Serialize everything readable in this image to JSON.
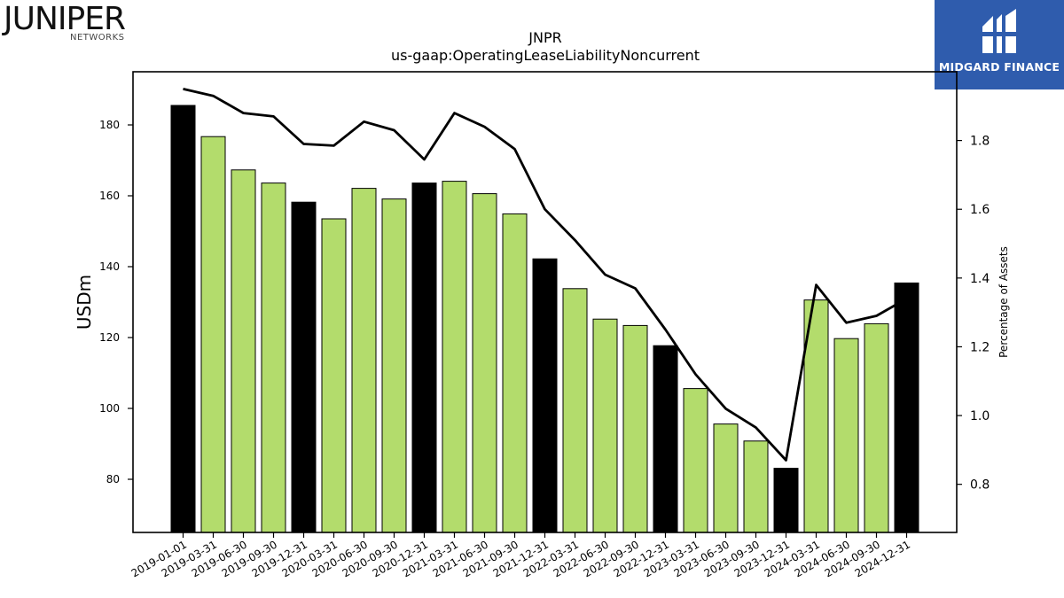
{
  "logos": {
    "left_word": "JUNIPER",
    "left_sub": "NETWORKS",
    "right_text": "MIDGARD FINANCE",
    "right_bg": "#2f5cad"
  },
  "colors": {
    "bar_default": "#b3dc6c",
    "bar_highlight": "#000000",
    "line": "#000000"
  },
  "chart_data": {
    "type": "bar",
    "title": "JNPR",
    "subtitle": "us-gaap:OperatingLeaseLiabilityNoncurrent",
    "ylabel": "USDm",
    "y2label": "Percentage of Assets",
    "ylim": [
      65,
      195
    ],
    "y2lim": [
      0.66,
      2.0
    ],
    "yticks": [
      80,
      100,
      120,
      140,
      160,
      180
    ],
    "y2ticks": [
      0.8,
      1.0,
      1.2,
      1.4,
      1.6,
      1.8
    ],
    "y2ticklabels": [
      "0.8",
      "1.0",
      "1.2",
      "1.4",
      "1.6",
      "1.8"
    ],
    "categories": [
      "2019-01-01",
      "2019-03-31",
      "2019-06-30",
      "2019-09-30",
      "2019-12-31",
      "2020-03-31",
      "2020-06-30",
      "2020-09-30",
      "2020-12-31",
      "2021-03-31",
      "2021-06-30",
      "2021-09-30",
      "2021-12-31",
      "2022-03-31",
      "2022-06-30",
      "2022-09-30",
      "2022-12-31",
      "2023-03-31",
      "2023-06-30",
      "2023-09-30",
      "2023-12-31",
      "2024-03-31",
      "2024-06-30",
      "2024-09-30",
      "2024-12-31"
    ],
    "series": [
      {
        "type": "bar",
        "values": [
          185.5,
          176.7,
          167.3,
          163.6,
          158.2,
          153.5,
          162.1,
          159.1,
          163.6,
          164.1,
          160.6,
          154.9,
          142.2,
          133.8,
          125.2,
          123.4,
          117.7,
          105.6,
          95.6,
          90.8,
          83.1,
          130.6,
          119.7,
          123.9,
          135.4
        ],
        "highlight": [
          true,
          false,
          false,
          false,
          true,
          false,
          false,
          false,
          true,
          false,
          false,
          false,
          true,
          false,
          false,
          false,
          true,
          false,
          false,
          false,
          true,
          false,
          false,
          false,
          true
        ]
      },
      {
        "type": "line",
        "axis": "right",
        "values": [
          1.95,
          1.93,
          1.88,
          1.87,
          1.79,
          1.785,
          1.855,
          1.83,
          1.745,
          1.88,
          1.84,
          1.775,
          1.6,
          1.51,
          1.41,
          1.37,
          1.25,
          1.12,
          1.02,
          0.965,
          0.87,
          1.38,
          1.27,
          1.29,
          1.34
        ]
      }
    ]
  }
}
